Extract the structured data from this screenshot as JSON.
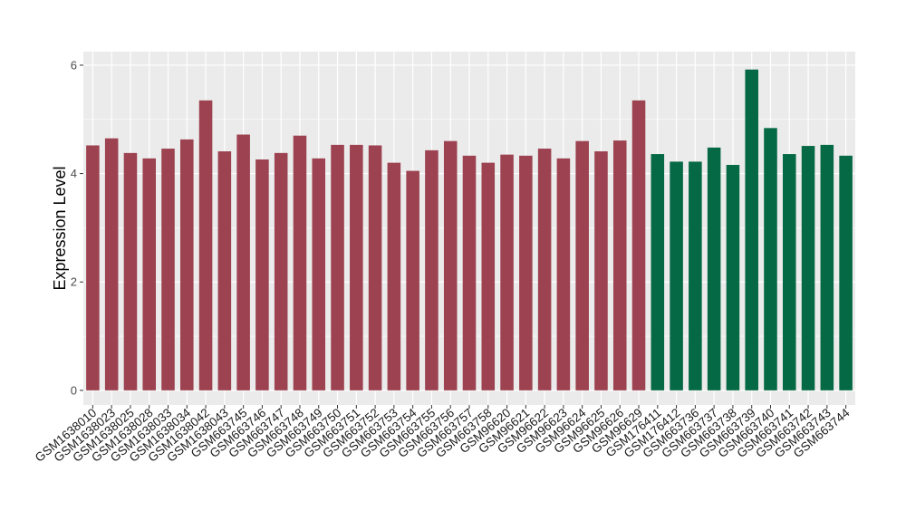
{
  "chart_data": {
    "type": "bar",
    "title": "",
    "xlabel": "",
    "ylabel": "Expression Level",
    "ylim": [
      -0.27,
      6.25
    ],
    "yticks": [
      0,
      2,
      4,
      6
    ],
    "grid": true,
    "legend": "none",
    "categories": [
      "GSM1638010",
      "GSM1638023",
      "GSM1638025",
      "GSM1638028",
      "GSM1638033",
      "GSM1638034",
      "GSM1638042",
      "GSM1638043",
      "GSM663745",
      "GSM663746",
      "GSM663747",
      "GSM663748",
      "GSM663749",
      "GSM663750",
      "GSM663751",
      "GSM663752",
      "GSM663753",
      "GSM663754",
      "GSM663755",
      "GSM663756",
      "GSM663757",
      "GSM663758",
      "GSM96620",
      "GSM96621",
      "GSM96622",
      "GSM96623",
      "GSM96624",
      "GSM96625",
      "GSM96626",
      "GSM96629",
      "GSM176411",
      "GSM176412",
      "GSM663736",
      "GSM663737",
      "GSM663738",
      "GSM663739",
      "GSM663740",
      "GSM663741",
      "GSM663742",
      "GSM663743",
      "GSM663744"
    ],
    "values": [
      4.52,
      4.65,
      4.38,
      4.28,
      4.46,
      4.63,
      5.35,
      4.41,
      4.72,
      4.26,
      4.38,
      4.7,
      4.28,
      4.53,
      4.53,
      4.52,
      4.2,
      4.05,
      4.43,
      4.6,
      4.33,
      4.2,
      4.35,
      4.33,
      4.46,
      4.28,
      4.6,
      4.41,
      4.61,
      5.35,
      4.36,
      4.22,
      4.22,
      4.48,
      4.16,
      5.92,
      4.84,
      4.36,
      4.51,
      4.53,
      4.33
    ],
    "groups": [
      0,
      0,
      0,
      0,
      0,
      0,
      0,
      0,
      0,
      0,
      0,
      0,
      0,
      0,
      0,
      0,
      0,
      0,
      0,
      0,
      0,
      0,
      0,
      0,
      0,
      0,
      0,
      0,
      0,
      0,
      1,
      1,
      1,
      1,
      1,
      1,
      1,
      1,
      1,
      1,
      1
    ],
    "colors": [
      "#9c4250",
      "#066945"
    ],
    "panel_color": "#ebebeb",
    "grid_color": "#ffffff"
  }
}
